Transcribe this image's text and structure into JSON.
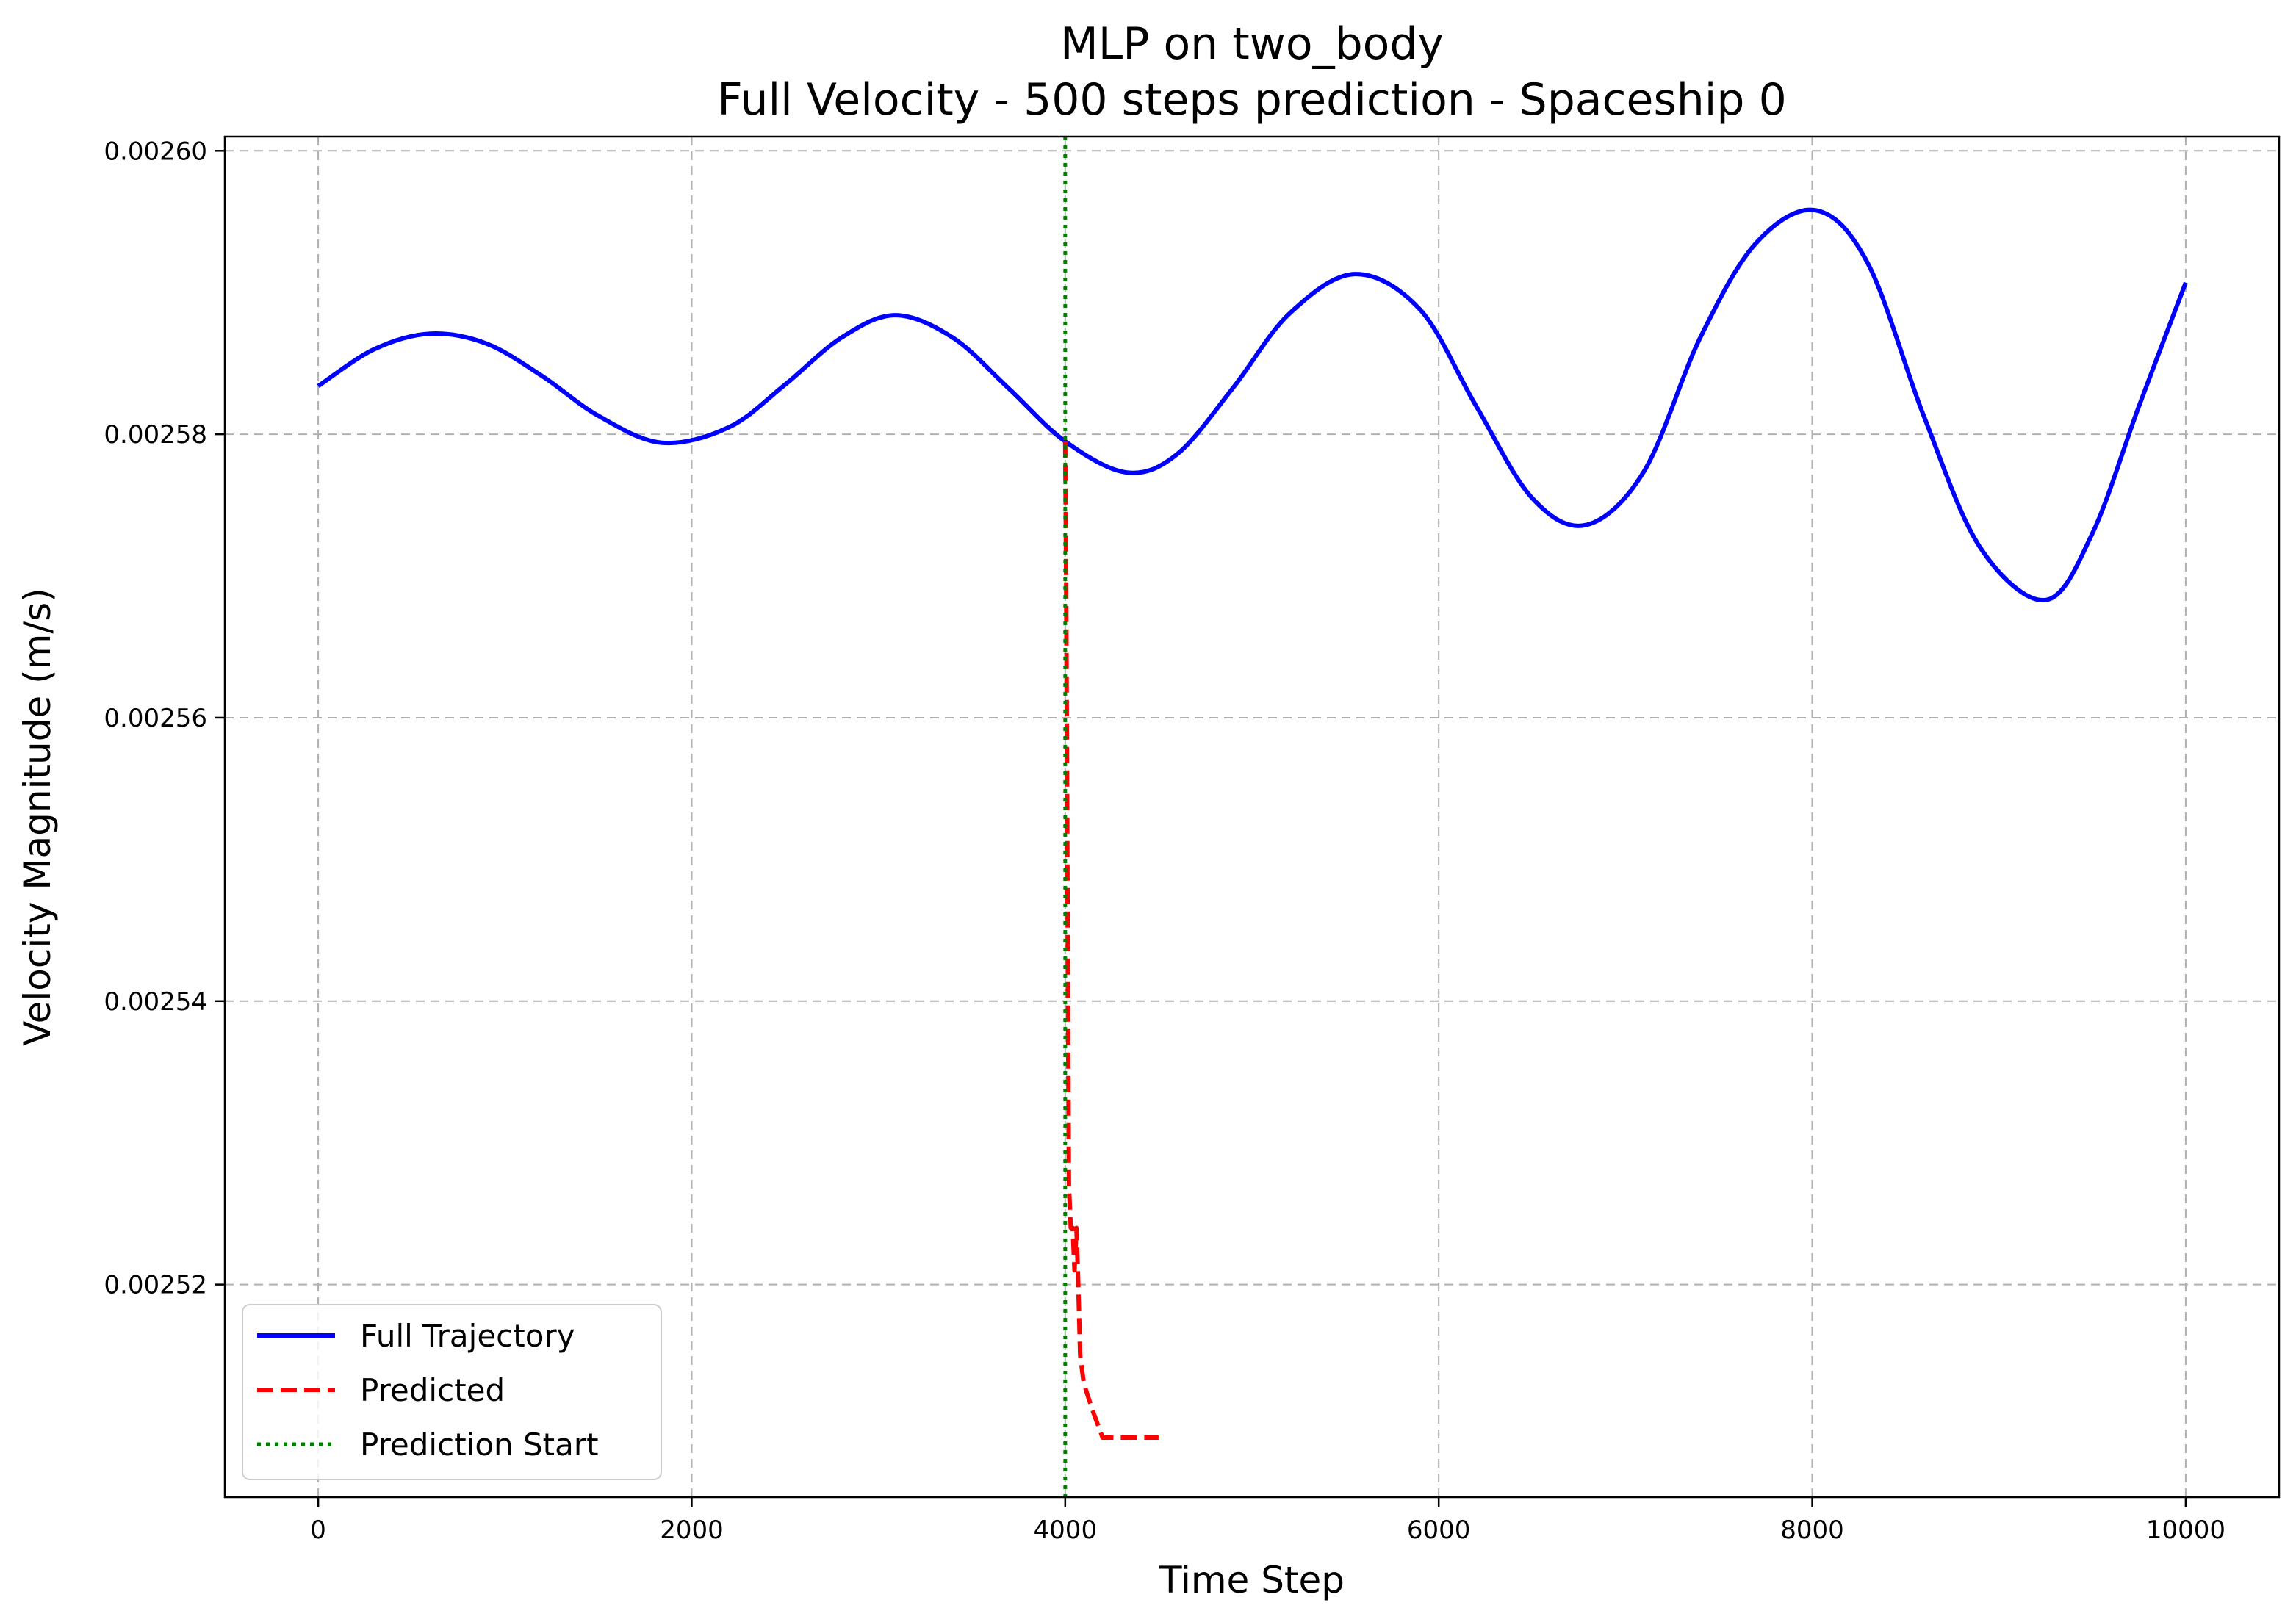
{
  "chart_data": {
    "type": "line",
    "title": "MLP on two_body",
    "subtitle": "Full Velocity - 500 steps prediction - Spaceship 0",
    "xlabel": "Time Step",
    "ylabel": "Velocity Magnitude (m/s)",
    "xlim": [
      -500,
      10500
    ],
    "ylim": [
      0.002505,
      0.002601
    ],
    "xticks": [
      0,
      2000,
      4000,
      6000,
      8000,
      10000
    ],
    "xtick_labels": [
      "0",
      "2000",
      "4000",
      "6000",
      "8000",
      "10000"
    ],
    "yticks": [
      0.00252,
      0.00254,
      0.00256,
      0.00258,
      0.0026
    ],
    "ytick_labels": [
      "0.00252",
      "0.00254",
      "0.00256",
      "0.00258",
      "0.00260"
    ],
    "grid": true,
    "legend_position": "lower-left",
    "series": [
      {
        "name": "Full Trajectory",
        "color": "#0000ff",
        "style": "solid",
        "x": [
          0,
          300,
          600,
          900,
          1200,
          1500,
          1840,
          2200,
          2500,
          2800,
          3090,
          3400,
          3700,
          4000,
          4330,
          4600,
          4900,
          5200,
          5550,
          5900,
          6200,
          6500,
          6790,
          7100,
          7400,
          7700,
          8020,
          8300,
          8600,
          8900,
          9250,
          9500,
          9750,
          10000
        ],
        "y": [
          0.0025834,
          0.002586,
          0.0025871,
          0.0025864,
          0.0025841,
          0.0025813,
          0.0025794,
          0.0025805,
          0.0025835,
          0.0025868,
          0.0025884,
          0.0025868,
          0.0025832,
          0.0025795,
          0.0025773,
          0.0025786,
          0.0025833,
          0.0025885,
          0.0025913,
          0.0025888,
          0.002582,
          0.0025755,
          0.0025736,
          0.0025774,
          0.0025868,
          0.0025935,
          0.0025958,
          0.002592,
          0.0025812,
          0.002572,
          0.0025683,
          0.002573,
          0.002582,
          0.0025907
        ]
      },
      {
        "name": "Predicted",
        "color": "#ff0000",
        "style": "dashed",
        "x": [
          4000,
          4005,
          4010,
          4015,
          4020,
          4030,
          4040,
          4050,
          4060,
          4070,
          4080,
          4100,
          4150,
          4200,
          4250,
          4300,
          4400,
          4500
        ],
        "y": [
          0.0025795,
          0.00257,
          0.002555,
          0.00254,
          0.002527,
          0.002524,
          0.002524,
          0.002521,
          0.002524,
          0.00252,
          0.002515,
          0.002513,
          0.002511,
          0.0025092,
          0.0025092,
          0.0025092,
          0.0025092,
          0.0025092
        ]
      },
      {
        "name": "Prediction Start",
        "color": "#008000",
        "style": "dotted",
        "vline_x": 4000
      }
    ]
  }
}
